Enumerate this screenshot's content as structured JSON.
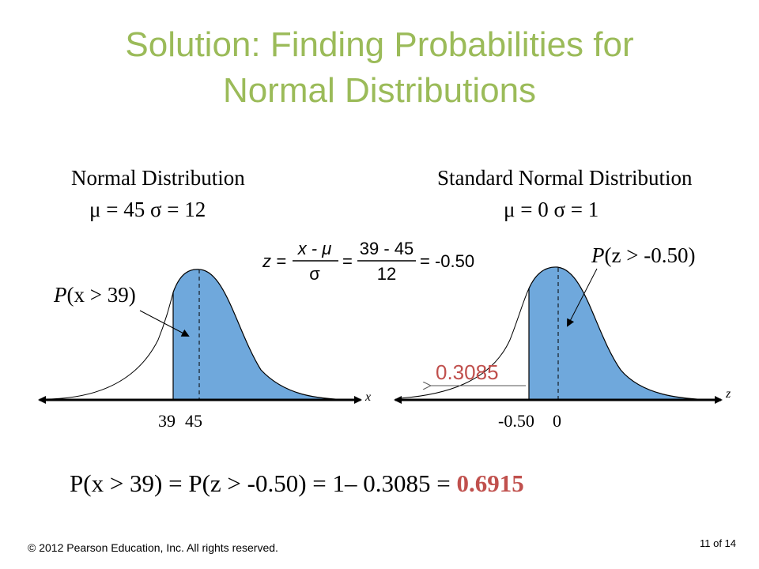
{
  "title_line1": "Solution:  Finding Probabilities for",
  "title_line2": "Normal Distributions",
  "colors": {
    "title": "#9bbb59",
    "shade": "#6fa8dc",
    "accent": "#c0504d"
  },
  "left": {
    "heading": "Normal Distribution",
    "params": "μ = 45  σ = 12",
    "prob_label_p": "P",
    "prob_label_arg": "(x > 39)",
    "axis_var": "x",
    "tick_a": "39",
    "tick_b": "45"
  },
  "right": {
    "heading": "Standard Normal Distribution",
    "params": "μ = 0  σ = 1",
    "prob_label_p": "P",
    "prob_label_arg": "(z > -0.50)",
    "axis_var": "z",
    "tick_a": "-0.50",
    "tick_b": "0",
    "left_area": "0.3085"
  },
  "formula": {
    "lhs": "z =",
    "num1": "x - μ",
    "den1": "σ",
    "eq1": "=",
    "num2": "39 - 45",
    "den2": "12",
    "result": "= -0.50"
  },
  "equation": {
    "part1": "P(x > 39) = P(z > -0.50) = 1– 0.3085 = ",
    "answer": "0.6915"
  },
  "footer": {
    "copyright": "© 2012 Pearson Education, Inc. All rights reserved.",
    "page": "11 of 14"
  }
}
